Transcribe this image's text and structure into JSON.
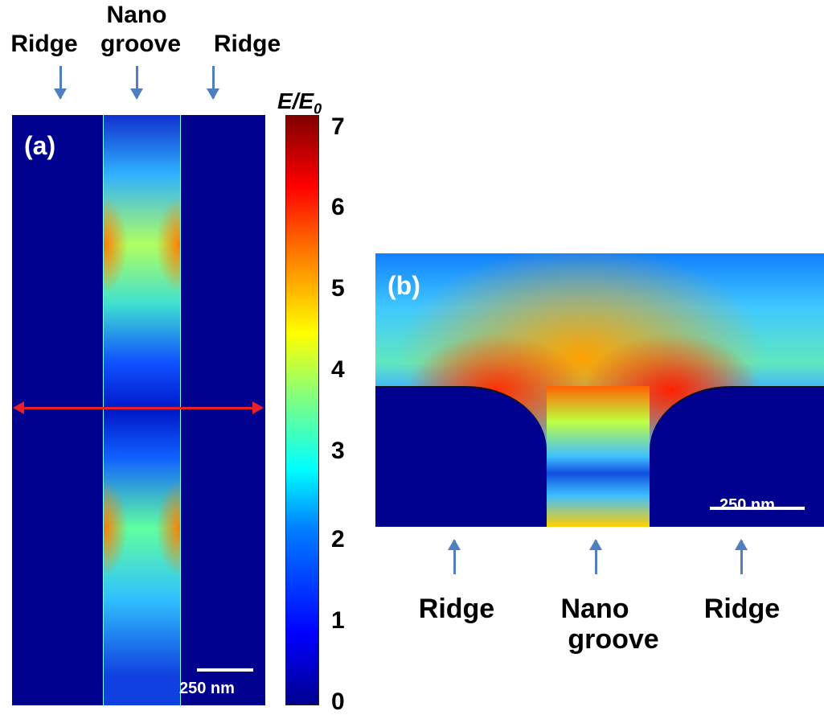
{
  "panel_a": {
    "tag": "(a)",
    "top_labels": {
      "left": "Ridge",
      "center_line1": "Nano",
      "center_line2": "groove",
      "right": "Ridge"
    },
    "scale_bar": "250 nm"
  },
  "colorbar": {
    "title": "E/E",
    "title_sub": "0",
    "ticks": [
      "7",
      "6",
      "5",
      "4",
      "3",
      "2",
      "1",
      "0"
    ],
    "range": [
      0,
      7
    ],
    "colormap": "jet"
  },
  "panel_b": {
    "tag": "(b)",
    "bottom_labels": {
      "left": "Ridge",
      "center_line1": "Nano",
      "center_line2": "groove",
      "right": "Ridge"
    },
    "scale_bar": "250 nm"
  },
  "colors": {
    "arrow": "#4f7fc0",
    "line_marker": "#e8202a",
    "background_field": "#00008f"
  }
}
